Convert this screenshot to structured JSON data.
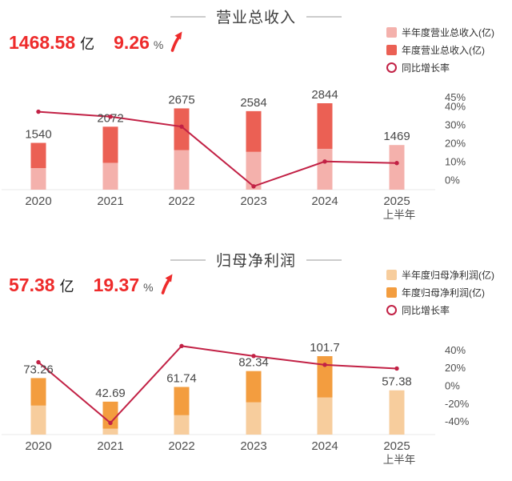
{
  "colors": {
    "headline_red": "#ee2b2b",
    "growth_line": "#c22145",
    "axis_line": "#e8e8e8",
    "revenue_half_bar": "#f4b1ac",
    "revenue_annual_bar": "#eb6054",
    "profit_half_bar": "#f7cd9d",
    "profit_annual_bar": "#f39d3f"
  },
  "charts": [
    {
      "title": "营业总收入",
      "headline": {
        "value": "1468.58",
        "unit": "亿",
        "growth": "9.26",
        "growth_unit": "%",
        "direction": "up"
      },
      "legend": [
        {
          "label": "半年度营业总收入(亿)",
          "swatch": "square",
          "color": "#f4b1ac"
        },
        {
          "label": "年度营业总收入(亿)",
          "swatch": "square",
          "color": "#eb6054"
        },
        {
          "label": "同比增长率",
          "swatch": "circle",
          "color": "#c22145"
        }
      ]
    },
    {
      "title": "归母净利润",
      "headline": {
        "value": "57.38",
        "unit": "亿",
        "growth": "19.37",
        "growth_unit": "%",
        "direction": "up"
      },
      "legend": [
        {
          "label": "半年度归母净利润(亿)",
          "swatch": "square",
          "color": "#f7cd9d"
        },
        {
          "label": "年度归母净利润(亿)",
          "swatch": "square",
          "color": "#f39d3f"
        },
        {
          "label": "同比增长率",
          "swatch": "circle",
          "color": "#c22145"
        }
      ]
    }
  ],
  "chart_data": [
    {
      "type": "bar+line",
      "title": "营业总收入",
      "categories": [
        "2020",
        "2021",
        "2022",
        "2023",
        "2024",
        "2025 上半年"
      ],
      "x_labels": [
        [
          "2020"
        ],
        [
          "2021"
        ],
        [
          "2022"
        ],
        [
          "2023"
        ],
        [
          "2024"
        ],
        [
          "2025",
          "上半年"
        ]
      ],
      "series": [
        {
          "name": "半年度营业总收入(亿)",
          "type": "bar",
          "stack": "bottom",
          "color": "#f4b1ac",
          "values": [
            711,
            883,
            1301,
            1244,
            1344,
            1469
          ]
        },
        {
          "name": "年度营业总收入(亿)",
          "type": "bar",
          "stack": "total",
          "color": "#eb6054",
          "values": [
            1540,
            2072,
            2675,
            2584,
            2844,
            null
          ]
        },
        {
          "name": "同比增长率",
          "type": "line",
          "unit": "%",
          "color": "#c22145",
          "values": [
            37.2,
            34.5,
            29.1,
            -3.4,
            10.1,
            9.26
          ]
        }
      ],
      "bar_labels": [
        "1540",
        "2072",
        "2675",
        "2584",
        "2844",
        "1469"
      ],
      "percent_axis": {
        "position": "right",
        "ticks": [
          45,
          40,
          30,
          20,
          10,
          0
        ],
        "tick_labels": [
          "45%",
          "40%",
          "30%",
          "20%",
          "10%",
          "0%"
        ]
      },
      "grid": false,
      "legend_position": "top-right"
    },
    {
      "type": "bar+line",
      "title": "归母净利润",
      "categories": [
        "2020",
        "2021",
        "2022",
        "2023",
        "2024",
        "2025 上半年"
      ],
      "x_labels": [
        [
          "2020"
        ],
        [
          "2021"
        ],
        [
          "2022"
        ],
        [
          "2023"
        ],
        [
          "2024"
        ],
        [
          "2025",
          "上半年"
        ]
      ],
      "series": [
        {
          "name": "半年度归母净利润(亿)",
          "type": "bar",
          "stack": "bottom",
          "color": "#f7cd9d",
          "values": [
            37.6,
            7.6,
            25.1,
            41.8,
            48.1,
            57.38
          ]
        },
        {
          "name": "年度归母净利润(亿)",
          "type": "bar",
          "stack": "total",
          "color": "#f39d3f",
          "values": [
            73.26,
            42.69,
            61.74,
            82.34,
            101.7,
            null
          ]
        },
        {
          "name": "同比增长率",
          "type": "line",
          "unit": "%",
          "color": "#c22145",
          "values": [
            26.4,
            -41.7,
            44.6,
            33.4,
            23.5,
            19.37
          ]
        }
      ],
      "bar_labels": [
        "73.26",
        "42.69",
        "61.74",
        "82.34",
        "101.7",
        "57.38"
      ],
      "percent_axis": {
        "position": "right",
        "ticks": [
          40,
          20,
          0,
          -20,
          -40
        ],
        "tick_labels": [
          "40%",
          "20%",
          "0%",
          "-20%",
          "-40%"
        ]
      },
      "grid": false,
      "legend_position": "top-right"
    }
  ]
}
